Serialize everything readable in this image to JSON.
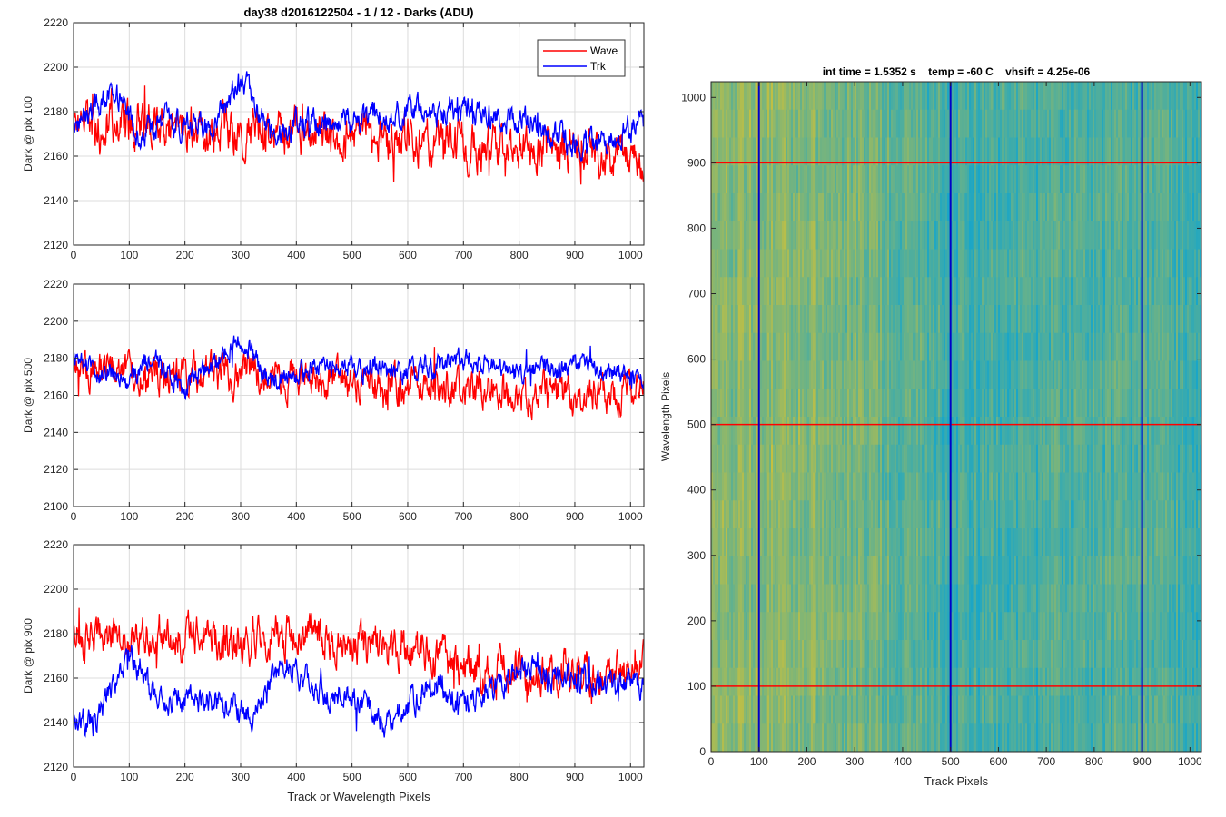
{
  "figure": {
    "title": "day38 d2016122504 - 1 / 12 - Darks (ADU)"
  },
  "chart_data": [
    {
      "type": "line",
      "title": "day38 d2016122504 - 1 / 12 - Darks (ADU)",
      "xlabel": "",
      "ylabel": "Dark @ pix 100",
      "xlim": [
        0,
        1024
      ],
      "ylim": [
        2120,
        2220
      ],
      "xticks": [
        0,
        100,
        200,
        300,
        400,
        500,
        600,
        700,
        800,
        900,
        1000
      ],
      "yticks": [
        2120,
        2140,
        2160,
        2180,
        2200,
        2220
      ],
      "grid": true,
      "legend": "top-right",
      "series": [
        {
          "name": "Wave",
          "color": "#ff0000",
          "mean_knots_x": [
            0,
            150,
            300,
            450,
            550,
            700,
            850,
            1024
          ],
          "mean_knots_y": [
            2176,
            2174,
            2172,
            2170,
            2168,
            2164,
            2162,
            2160
          ],
          "noise": 10
        },
        {
          "name": "Trk",
          "color": "#0000ff",
          "mean_knots_x": [
            0,
            70,
            120,
            160,
            250,
            300,
            350,
            450,
            600,
            700,
            800,
            900,
            950,
            1024
          ],
          "mean_knots_y": [
            2170,
            2190,
            2166,
            2176,
            2172,
            2196,
            2172,
            2176,
            2180,
            2180,
            2176,
            2166,
            2164,
            2176
          ],
          "noise": 6
        }
      ]
    },
    {
      "type": "line",
      "xlabel": "",
      "ylabel": "Dark @ pix 500",
      "xlim": [
        0,
        1024
      ],
      "ylim": [
        2100,
        2220
      ],
      "xticks": [
        0,
        100,
        200,
        300,
        400,
        500,
        600,
        700,
        800,
        900,
        1000
      ],
      "yticks": [
        2100,
        2120,
        2140,
        2160,
        2180,
        2200,
        2220
      ],
      "grid": true,
      "series": [
        {
          "name": "Wave",
          "color": "#ff0000",
          "mean_knots_x": [
            0,
            200,
            400,
            600,
            800,
            1024
          ],
          "mean_knots_y": [
            2176,
            2172,
            2170,
            2166,
            2160,
            2162
          ],
          "noise": 10
        },
        {
          "name": "Trk",
          "color": "#0000ff",
          "mean_knots_x": [
            0,
            100,
            140,
            200,
            300,
            350,
            450,
            600,
            700,
            800,
            900,
            1024
          ],
          "mean_knots_y": [
            2180,
            2166,
            2182,
            2164,
            2190,
            2168,
            2176,
            2172,
            2180,
            2172,
            2176,
            2168
          ],
          "noise": 6
        }
      ]
    },
    {
      "type": "line",
      "xlabel": "Track or Wavelength Pixels",
      "ylabel": "Dark @ pix 900",
      "xlim": [
        0,
        1024
      ],
      "ylim": [
        2120,
        2220
      ],
      "xticks": [
        0,
        100,
        200,
        300,
        400,
        500,
        600,
        700,
        800,
        900,
        1000
      ],
      "yticks": [
        2120,
        2140,
        2160,
        2180,
        2200,
        2220
      ],
      "grid": true,
      "series": [
        {
          "name": "Wave",
          "color": "#ff0000",
          "mean_knots_x": [
            0,
            150,
            300,
            400,
            550,
            700,
            850,
            1024
          ],
          "mean_knots_y": [
            2178,
            2180,
            2176,
            2180,
            2174,
            2166,
            2162,
            2164
          ],
          "noise": 9
        },
        {
          "name": "Trk",
          "color": "#0000ff",
          "mean_knots_x": [
            0,
            40,
            100,
            150,
            250,
            320,
            380,
            450,
            500,
            560,
            650,
            700,
            800,
            1024
          ],
          "mean_knots_y": [
            2138,
            2142,
            2170,
            2150,
            2150,
            2144,
            2168,
            2152,
            2152,
            2140,
            2156,
            2148,
            2164,
            2156
          ],
          "noise": 6
        }
      ]
    },
    {
      "type": "heatmap",
      "title": "int time = 1.5352 s    temp = -60 C    vhsift = 4.25e-06",
      "xlabel": "Track Pixels",
      "ylabel": "Wavelength Pixels",
      "xlim": [
        0,
        1024
      ],
      "ylim": [
        0,
        1024
      ],
      "xticks": [
        0,
        100,
        200,
        300,
        400,
        500,
        600,
        700,
        800,
        900,
        1000
      ],
      "yticks": [
        0,
        100,
        200,
        300,
        400,
        500,
        600,
        700,
        800,
        900,
        1000
      ],
      "colormap": "parula",
      "warm_color": "#c7c03e",
      "cool_color": "#1aa6c7",
      "horizontal_lines": [
        100,
        500,
        900
      ],
      "horizontal_line_color": "#ff0000",
      "vertical_lines": [
        100,
        500,
        900
      ],
      "vertical_line_color": "#0000c8"
    }
  ]
}
